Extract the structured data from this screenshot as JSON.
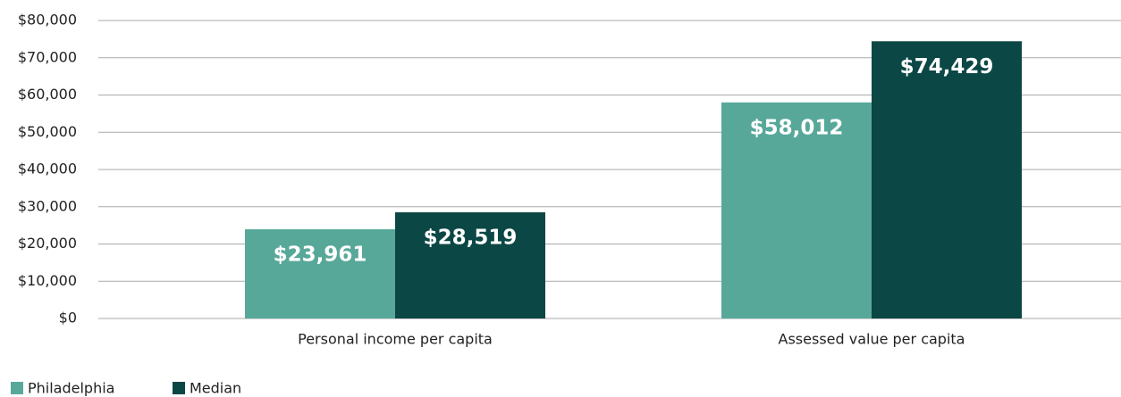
{
  "chart_data": {
    "type": "bar",
    "categories": [
      "Personal income per capita",
      "Assessed value per capita"
    ],
    "series": [
      {
        "name": "Philadelphia",
        "color": "#58a89a",
        "values": [
          23961,
          58012
        ],
        "value_labels": [
          "$23,961",
          "$58,012"
        ]
      },
      {
        "name": "Median",
        "color": "#0b4745",
        "values": [
          28519,
          74429
        ],
        "value_labels": [
          "$28,519",
          "$74,429"
        ]
      }
    ],
    "ylim": [
      0,
      80000
    ],
    "yticks": [
      {
        "value": 0,
        "label": "$0"
      },
      {
        "value": 10000,
        "label": "$10,000"
      },
      {
        "value": 20000,
        "label": "$20,000"
      },
      {
        "value": 30000,
        "label": "$30,000"
      },
      {
        "value": 40000,
        "label": "$40,000"
      },
      {
        "value": 50000,
        "label": "$50,000"
      },
      {
        "value": 60000,
        "label": "$60,000"
      },
      {
        "value": 70000,
        "label": "$70,000"
      },
      {
        "value": 80000,
        "label": "$80,000"
      }
    ],
    "grid": true,
    "legend": "bottom-left"
  }
}
